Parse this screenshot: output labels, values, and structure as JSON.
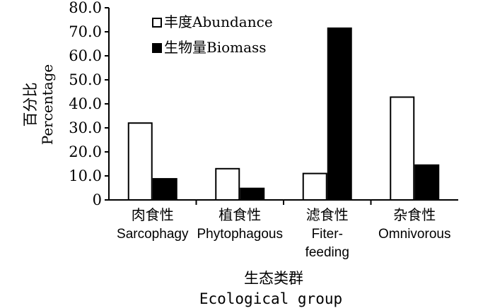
{
  "chart_data": {
    "type": "bar",
    "categories": [
      [
        "肉食性",
        "Sarcophagy"
      ],
      [
        "植食性",
        "Phytophagous"
      ],
      [
        "滤食性",
        "Fiter-",
        "feeding"
      ],
      [
        "杂食性",
        "Omnivorous"
      ]
    ],
    "series": [
      {
        "name": "丰度Abundance",
        "values": [
          32.0,
          13.0,
          11.0,
          42.8
        ],
        "color": "#ffffff"
      },
      {
        "name": "生物量Biomass",
        "values": [
          8.8,
          4.8,
          71.5,
          14.5
        ],
        "color": "#000000"
      }
    ],
    "ylim": [
      0,
      80
    ],
    "yticks": [
      "0",
      "10.0",
      "20.0",
      "30.0",
      "40.0",
      "50.0",
      "60.0",
      "70.0",
      "80.0"
    ],
    "ylabel": [
      "百分比",
      "Percentage"
    ],
    "xlabel": [
      "生态类群",
      "Ecological group"
    ],
    "legend_position": "top-left",
    "grid": false
  }
}
